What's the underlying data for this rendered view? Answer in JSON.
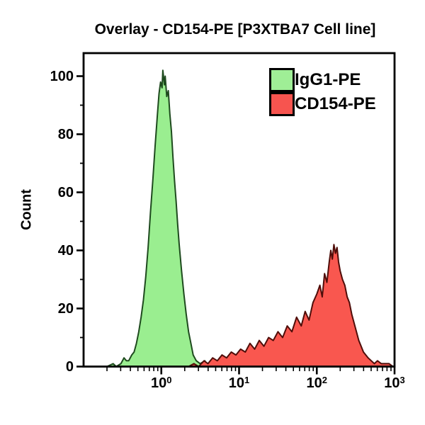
{
  "title": "Overlay - CD154-PE [P3XTBA7 Cell line]",
  "axes": {
    "y_label": "Count",
    "y_major_ticks": [
      0,
      20,
      40,
      60,
      80,
      100
    ],
    "y_minor_ticks": [
      10,
      30,
      50,
      70,
      90
    ],
    "x_major_ticks": [
      {
        "base": "10",
        "exp": "0"
      },
      {
        "base": "10",
        "exp": "1"
      },
      {
        "base": "10",
        "exp": "2"
      },
      {
        "base": "10",
        "exp": "3"
      }
    ],
    "axis_color": "#000000",
    "background": "#ffffff"
  },
  "legend": [
    {
      "label": "IgG1-PE",
      "color": "#9fee96"
    },
    {
      "label": "CD154-PE",
      "color": "#f7544f"
    }
  ],
  "chart_data": {
    "type": "area",
    "title": "Overlay - CD154-PE [P3XTBA7 Cell line]",
    "xlabel": "",
    "ylabel": "Count",
    "x_scale": "log",
    "x_range_log10": [
      -1,
      3
    ],
    "ylim": [
      0,
      108
    ],
    "grid": false,
    "legend_position": "top-right",
    "series": [
      {
        "name": "IgG1-PE",
        "fill": "#9aee90",
        "edge": "#1e4a1e",
        "points_log10x_count": [
          [
            -0.7,
            0
          ],
          [
            -0.62,
            1
          ],
          [
            -0.58,
            0
          ],
          [
            -0.52,
            1
          ],
          [
            -0.48,
            3
          ],
          [
            -0.45,
            2
          ],
          [
            -0.42,
            2
          ],
          [
            -0.38,
            4
          ],
          [
            -0.35,
            5
          ],
          [
            -0.32,
            8
          ],
          [
            -0.29,
            12
          ],
          [
            -0.26,
            17
          ],
          [
            -0.23,
            23
          ],
          [
            -0.2,
            31
          ],
          [
            -0.17,
            41
          ],
          [
            -0.14,
            53
          ],
          [
            -0.11,
            64
          ],
          [
            -0.08,
            76
          ],
          [
            -0.05,
            87
          ],
          [
            -0.03,
            94
          ],
          [
            -0.01,
            98
          ],
          [
            0.01,
            96
          ],
          [
            0.02,
            102
          ],
          [
            0.04,
            97
          ],
          [
            0.05,
            100
          ],
          [
            0.07,
            93
          ],
          [
            0.09,
            95
          ],
          [
            0.11,
            87
          ],
          [
            0.13,
            81
          ],
          [
            0.15,
            72
          ],
          [
            0.17,
            64
          ],
          [
            0.19,
            57
          ],
          [
            0.21,
            49
          ],
          [
            0.23,
            42
          ],
          [
            0.26,
            33
          ],
          [
            0.29,
            25
          ],
          [
            0.32,
            18
          ],
          [
            0.35,
            12
          ],
          [
            0.38,
            8
          ],
          [
            0.41,
            4
          ],
          [
            0.45,
            2
          ],
          [
            0.5,
            1
          ],
          [
            0.56,
            2
          ],
          [
            0.6,
            0
          ],
          [
            0.66,
            1
          ],
          [
            0.72,
            0
          ]
        ]
      },
      {
        "name": "CD154-PE",
        "fill": "#f9574f",
        "edge": "#4f0d09",
        "points_log10x_count": [
          [
            0.35,
            0
          ],
          [
            0.42,
            1
          ],
          [
            0.48,
            0
          ],
          [
            0.55,
            2
          ],
          [
            0.6,
            1
          ],
          [
            0.66,
            3
          ],
          [
            0.72,
            2
          ],
          [
            0.78,
            4
          ],
          [
            0.84,
            3
          ],
          [
            0.9,
            5
          ],
          [
            0.96,
            4
          ],
          [
            1.02,
            6
          ],
          [
            1.08,
            5
          ],
          [
            1.14,
            8
          ],
          [
            1.2,
            6
          ],
          [
            1.26,
            9
          ],
          [
            1.32,
            7
          ],
          [
            1.38,
            10
          ],
          [
            1.44,
            9
          ],
          [
            1.5,
            12
          ],
          [
            1.56,
            10
          ],
          [
            1.62,
            14
          ],
          [
            1.68,
            12
          ],
          [
            1.74,
            17
          ],
          [
            1.8,
            14
          ],
          [
            1.85,
            19
          ],
          [
            1.9,
            16
          ],
          [
            1.95,
            22
          ],
          [
            2.0,
            25
          ],
          [
            2.04,
            28
          ],
          [
            2.07,
            24
          ],
          [
            2.1,
            32
          ],
          [
            2.13,
            29
          ],
          [
            2.16,
            36
          ],
          [
            2.18,
            40
          ],
          [
            2.2,
            37
          ],
          [
            2.22,
            42
          ],
          [
            2.24,
            39
          ],
          [
            2.26,
            41
          ],
          [
            2.28,
            36
          ],
          [
            2.3,
            33
          ],
          [
            2.33,
            30
          ],
          [
            2.36,
            28
          ],
          [
            2.39,
            24
          ],
          [
            2.42,
            22
          ],
          [
            2.45,
            18
          ],
          [
            2.48,
            15
          ],
          [
            2.51,
            12
          ],
          [
            2.54,
            9
          ],
          [
            2.57,
            7
          ],
          [
            2.6,
            5
          ],
          [
            2.63,
            4
          ],
          [
            2.66,
            3
          ],
          [
            2.7,
            2
          ],
          [
            2.74,
            1
          ],
          [
            2.78,
            2
          ],
          [
            2.83,
            1
          ],
          [
            2.88,
            1
          ],
          [
            2.93,
            1
          ],
          [
            2.98,
            0
          ]
        ]
      }
    ]
  }
}
